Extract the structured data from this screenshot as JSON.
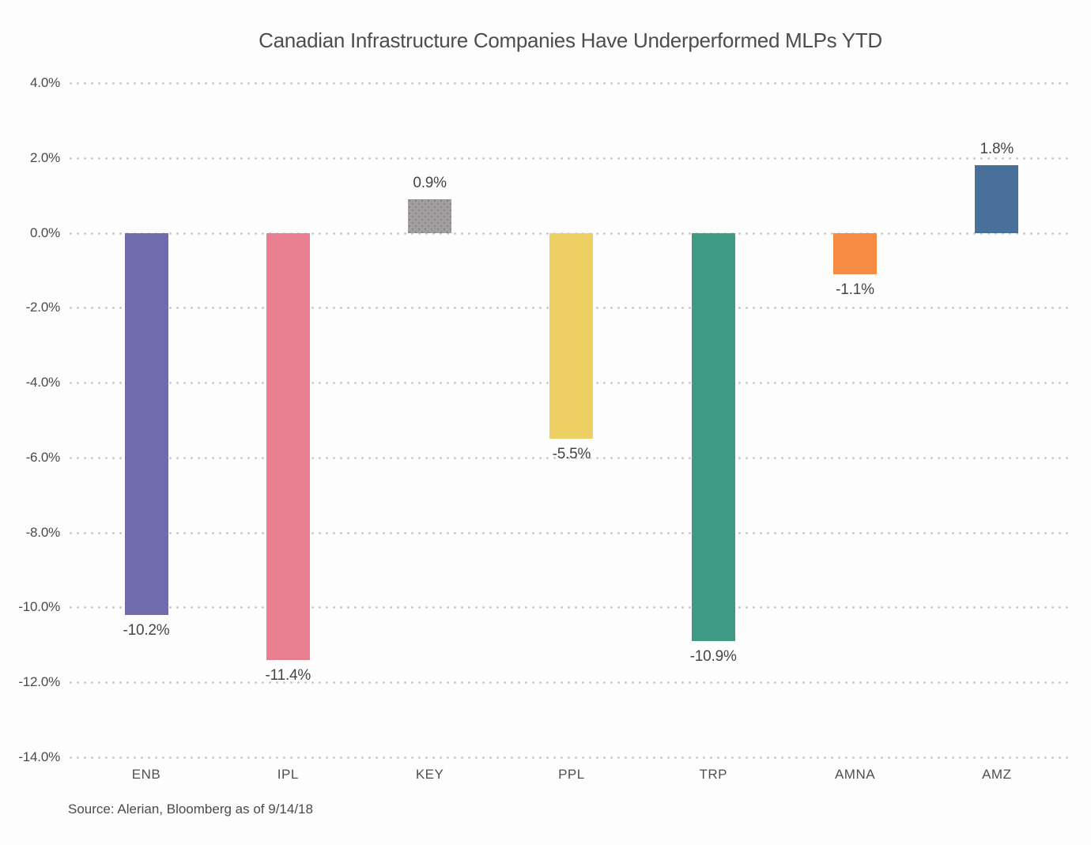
{
  "title": "Canadian Infrastructure Companies Have Underperformed MLPs YTD",
  "source": "Source: Alerian, Bloomberg as of 9/14/18",
  "chart_data": {
    "type": "bar",
    "title": "Canadian Infrastructure Companies Have Underperformed MLPs YTD",
    "categories": [
      "ENB",
      "IPL",
      "KEY",
      "PPL",
      "TRP",
      "AMNA",
      "AMZ"
    ],
    "values": [
      -10.2,
      -11.4,
      0.9,
      -5.5,
      -10.9,
      -1.1,
      1.8
    ],
    "value_labels": [
      "-10.2%",
      "-11.4%",
      "0.9%",
      "-5.5%",
      "-10.9%",
      "-1.1%",
      "1.8%"
    ],
    "bar_colors": [
      "#6f6bad",
      "#e87f90",
      "#a19e9f",
      "#eecf64",
      "#3f9a85",
      "#f68b44",
      "#49709b"
    ],
    "bar_patterns": [
      "solid",
      "solid",
      "dots",
      "solid",
      "solid",
      "solid",
      "solid"
    ],
    "xlabel": "",
    "ylabel": "",
    "ylim": [
      -14,
      4
    ],
    "ytick_labels": [
      "4.0%",
      "2.0%",
      "0.0%",
      "-2.0%",
      "-4.0%",
      "-6.0%",
      "-8.0%",
      "-10.0%",
      "-12.0%",
      "-14.0%"
    ],
    "ytick_values": [
      4,
      2,
      0,
      -2,
      -4,
      -6,
      -8,
      -10,
      -12,
      -14
    ],
    "grid": "horizontal-dotted",
    "legend": "none",
    "annotation": "Source: Alerian, Bloomberg as of 9/14/18"
  }
}
